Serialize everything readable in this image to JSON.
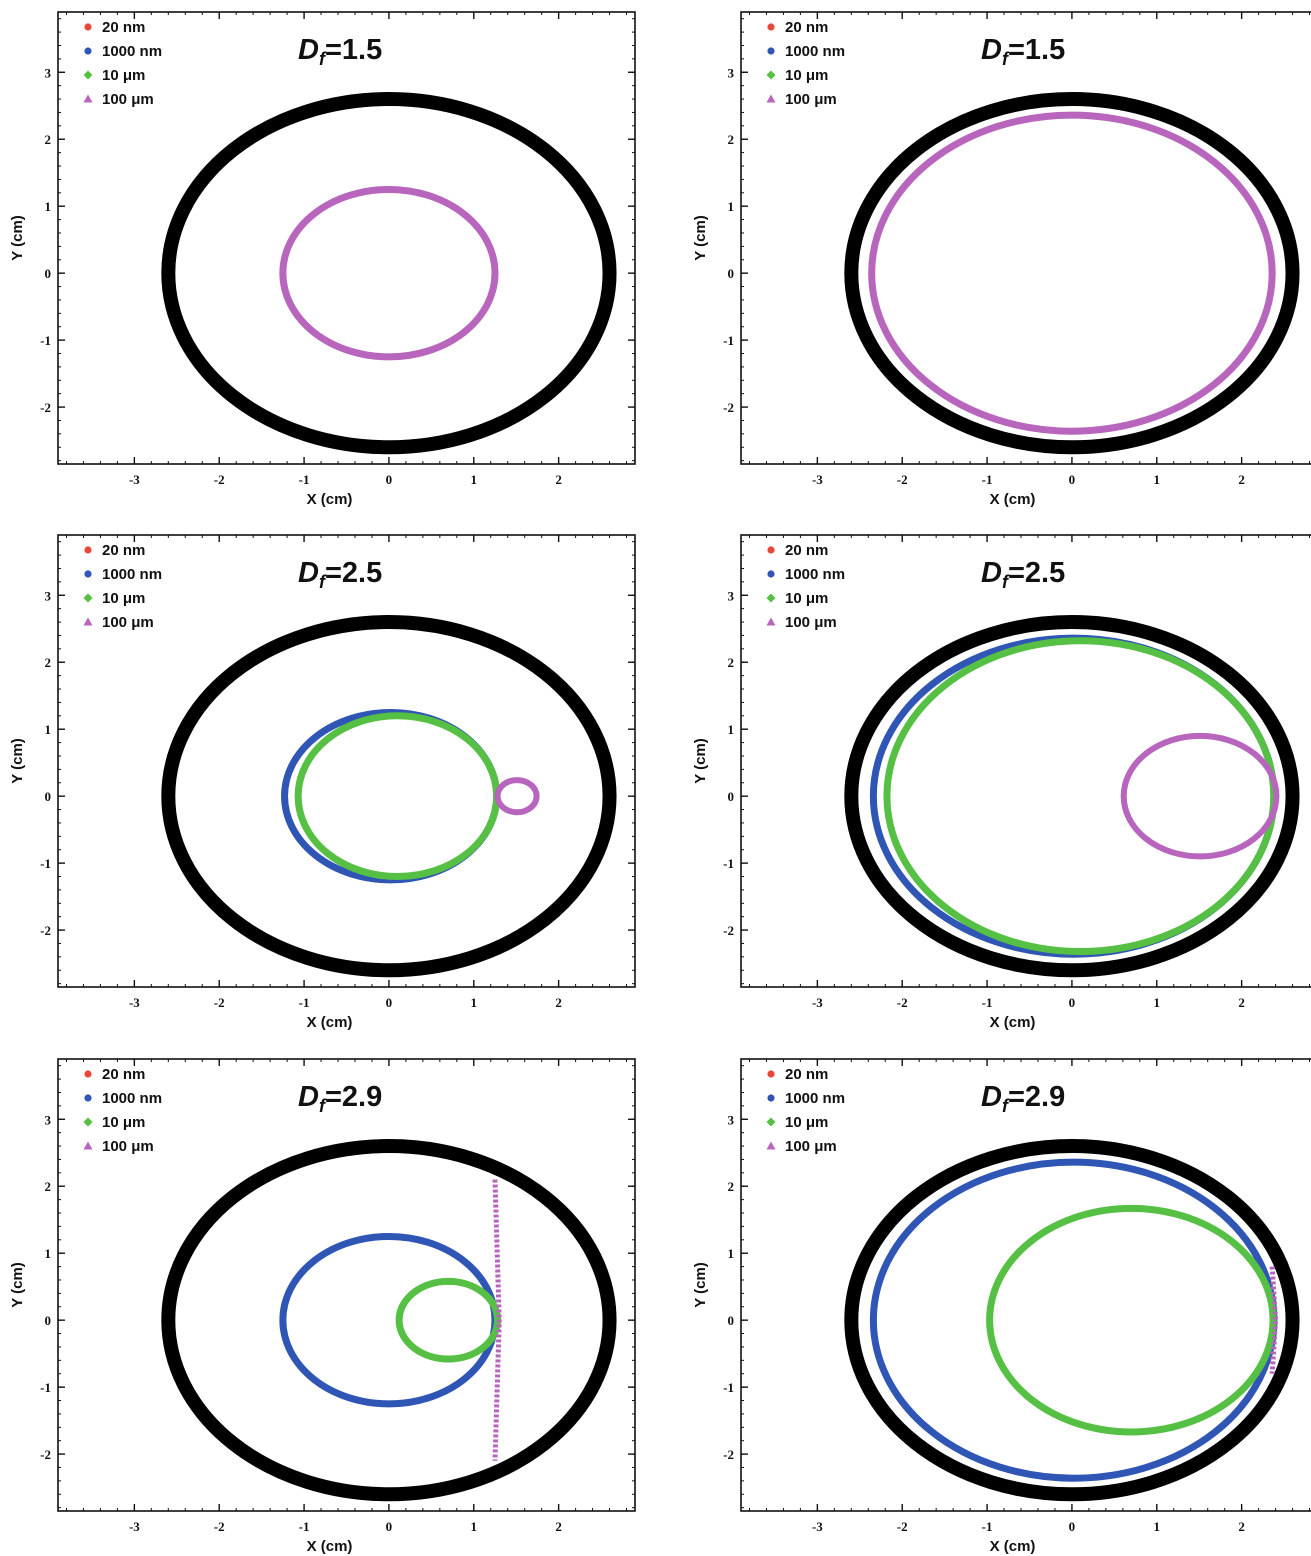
{
  "chart_data": [
    {
      "type": "line",
      "title": "Df=1.5",
      "title_prefix": "D",
      "title_sub": "f",
      "title_suffix": "=1.5",
      "xlabel": "X (cm)",
      "ylabel": "Y (cm)",
      "xlim": [
        -3.9,
        2.9
      ],
      "ylim": [
        -2.85,
        3.9
      ],
      "xticks": [
        -3,
        -2,
        -1,
        0,
        1,
        2
      ],
      "yticks": [
        -2,
        -1,
        0,
        1,
        2,
        3
      ],
      "legend": "top-left",
      "series": [
        {
          "name": "20 nm",
          "marker": "circle",
          "color": "#e8483c",
          "cx": 0,
          "rx": 1.25,
          "ry": 1.25,
          "width": 3
        },
        {
          "name": "1000 nm",
          "marker": "circle",
          "color": "#2f56b5",
          "cx": 0,
          "rx": 1.25,
          "ry": 1.25,
          "width": 3
        },
        {
          "name": "10 μm",
          "marker": "diamond",
          "color": "#55c043",
          "cx": 0,
          "rx": 1.25,
          "ry": 1.25,
          "width": 3
        },
        {
          "name": "100 μm",
          "marker": "triangle",
          "color": "#b865bd",
          "cx": 0,
          "rx": 1.25,
          "ry": 1.25,
          "width": 7
        }
      ],
      "boundary": {
        "color": "#000000",
        "cx": 0,
        "rx": 2.6,
        "ry": 2.6
      }
    },
    {
      "type": "line",
      "title": "Df=1.5",
      "title_prefix": "D",
      "title_sub": "f",
      "title_suffix": "=1.5",
      "xlabel": "X (cm)",
      "ylabel": "Y (cm)",
      "xlim": [
        -3.9,
        2.9
      ],
      "ylim": [
        -2.85,
        3.9
      ],
      "xticks": [
        -3,
        -2,
        -1,
        0,
        1,
        2
      ],
      "yticks": [
        -2,
        -1,
        0,
        1,
        2,
        3
      ],
      "legend": "top-left",
      "series": [
        {
          "name": "20 nm",
          "marker": "circle",
          "color": "#e8483c",
          "cx": 0,
          "rx": 2.36,
          "ry": 2.36,
          "width": 3
        },
        {
          "name": "1000 nm",
          "marker": "circle",
          "color": "#2f56b5",
          "cx": 0,
          "rx": 2.36,
          "ry": 2.36,
          "width": 3
        },
        {
          "name": "10 μm",
          "marker": "diamond",
          "color": "#55c043",
          "cx": 0,
          "rx": 2.36,
          "ry": 2.36,
          "width": 3
        },
        {
          "name": "100 μm",
          "marker": "triangle",
          "color": "#b865bd",
          "cx": 0,
          "rx": 2.36,
          "ry": 2.36,
          "width": 7
        }
      ],
      "boundary": {
        "color": "#000000",
        "cx": 0,
        "rx": 2.6,
        "ry": 2.6
      }
    },
    {
      "type": "line",
      "title": "Df=2.5",
      "title_prefix": "D",
      "title_sub": "f",
      "title_suffix": "=2.5",
      "xlabel": "X (cm)",
      "ylabel": "Y (cm)",
      "xlim": [
        -3.9,
        2.9
      ],
      "ylim": [
        -2.85,
        3.9
      ],
      "xticks": [
        -3,
        -2,
        -1,
        0,
        1,
        2
      ],
      "yticks": [
        -2,
        -1,
        0,
        1,
        2,
        3
      ],
      "legend": "top-left",
      "series": [
        {
          "name": "20 nm",
          "marker": "circle",
          "color": "#e8483c",
          "cx": 0.02,
          "rx": 1.25,
          "ry": 1.25,
          "width": 3
        },
        {
          "name": "1000 nm",
          "marker": "circle",
          "color": "#2f56b5",
          "cx": 0.02,
          "rx": 1.25,
          "ry": 1.25,
          "width": 7
        },
        {
          "name": "10 μm",
          "marker": "diamond",
          "color": "#55c043",
          "cx": 0.1,
          "rx": 1.17,
          "ry": 1.2,
          "width": 7
        },
        {
          "name": "100 μm",
          "marker": "triangle",
          "color": "#b865bd",
          "cx": 1.51,
          "rx": 0.23,
          "ry": 0.24,
          "width": 6
        }
      ],
      "boundary": {
        "color": "#000000",
        "cx": 0,
        "rx": 2.6,
        "ry": 2.6
      }
    },
    {
      "type": "line",
      "title": "Df=2.5",
      "title_prefix": "D",
      "title_sub": "f",
      "title_suffix": "=2.5",
      "xlabel": "X (cm)",
      "ylabel": "Y (cm)",
      "xlim": [
        -3.9,
        2.9
      ],
      "ylim": [
        -2.85,
        3.9
      ],
      "xticks": [
        -3,
        -2,
        -1,
        0,
        1,
        2
      ],
      "yticks": [
        -2,
        -1,
        0,
        1,
        2,
        3
      ],
      "legend": "top-left",
      "series": [
        {
          "name": "20 nm",
          "marker": "circle",
          "color": "#e8483c",
          "cx": 0.02,
          "rx": 2.36,
          "ry": 2.36,
          "width": 3
        },
        {
          "name": "1000 nm",
          "marker": "circle",
          "color": "#2f56b5",
          "cx": 0.02,
          "rx": 2.36,
          "ry": 2.36,
          "width": 7
        },
        {
          "name": "10 μm",
          "marker": "diamond",
          "color": "#55c043",
          "cx": 0.1,
          "rx": 2.28,
          "ry": 2.32,
          "width": 7
        },
        {
          "name": "100 μm",
          "marker": "triangle",
          "color": "#b865bd",
          "cx": 1.51,
          "rx": 0.9,
          "ry": 0.9,
          "width": 6
        }
      ],
      "boundary": {
        "color": "#000000",
        "cx": 0,
        "rx": 2.6,
        "ry": 2.6
      }
    },
    {
      "type": "line",
      "title": "Df=2.9",
      "title_prefix": "D",
      "title_sub": "f",
      "title_suffix": "=2.9",
      "xlabel": "X (cm)",
      "ylabel": "Y (cm)",
      "xlim": [
        -3.9,
        2.9
      ],
      "ylim": [
        -2.85,
        3.9
      ],
      "xticks": [
        -3,
        -2,
        -1,
        0,
        1,
        2
      ],
      "yticks": [
        -2,
        -1,
        0,
        1,
        2,
        3
      ],
      "legend": "top-left",
      "series": [
        {
          "name": "20 nm",
          "marker": "circle",
          "color": "#e8483c",
          "cx": 0,
          "rx": 1.25,
          "ry": 1.25,
          "width": 3
        },
        {
          "name": "1000 nm",
          "marker": "circle",
          "color": "#2f56b5",
          "cx": 0,
          "rx": 1.25,
          "ry": 1.25,
          "width": 7
        },
        {
          "name": "10 μm",
          "marker": "diamond",
          "color": "#55c043",
          "cx": 0.7,
          "rx": 0.58,
          "ry": 0.58,
          "width": 7
        },
        {
          "name": "100 μm",
          "marker": "triangle",
          "color": "#b865bd",
          "x": [
            1.25,
            1.3,
            1.25
          ],
          "y": [
            2.1,
            0,
            -2.1
          ],
          "width": 5
        }
      ],
      "boundary": {
        "color": "#000000",
        "cx": 0,
        "rx": 2.6,
        "ry": 2.6
      }
    },
    {
      "type": "line",
      "title": "Df=2.9",
      "title_prefix": "D",
      "title_sub": "f",
      "title_suffix": "=2.9",
      "xlabel": "X (cm)",
      "ylabel": "Y (cm)",
      "xlim": [
        -3.9,
        2.9
      ],
      "ylim": [
        -2.85,
        3.9
      ],
      "xticks": [
        -3,
        -2,
        -1,
        0,
        1,
        2
      ],
      "yticks": [
        -2,
        -1,
        0,
        1,
        2,
        3
      ],
      "legend": "top-left",
      "series": [
        {
          "name": "20 nm",
          "marker": "circle",
          "color": "#e8483c",
          "cx": 0.02,
          "rx": 2.36,
          "ry": 2.36,
          "width": 3
        },
        {
          "name": "1000 nm",
          "marker": "circle",
          "color": "#2f56b5",
          "cx": 0.02,
          "rx": 2.36,
          "ry": 2.36,
          "width": 7
        },
        {
          "name": "10 μm",
          "marker": "diamond",
          "color": "#55c043",
          "cx": 0.7,
          "rx": 1.67,
          "ry": 1.67,
          "width": 7
        },
        {
          "name": "100 μm",
          "marker": "triangle",
          "color": "#b865bd",
          "x": [
            2.36,
            2.4,
            2.36
          ],
          "y": [
            0.8,
            0,
            -0.8
          ],
          "width": 5
        }
      ],
      "boundary": {
        "color": "#000000",
        "cx": 0,
        "rx": 2.6,
        "ry": 2.6
      }
    }
  ]
}
